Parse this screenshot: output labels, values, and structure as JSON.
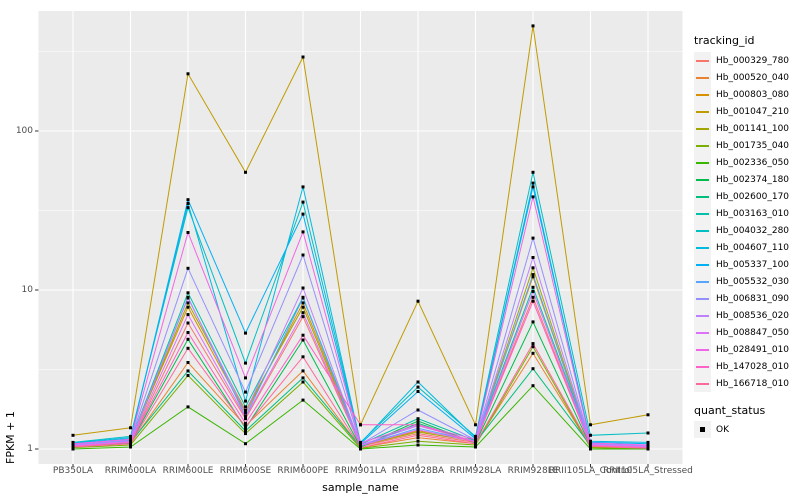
{
  "chart_data": {
    "type": "line",
    "title": "",
    "xlabel": "sample_name",
    "ylabel": "FPKM + 1",
    "y_scale": "log10",
    "y_ticks": [
      1,
      10,
      100
    ],
    "y_tick_labels": [
      "1",
      "10",
      "100"
    ],
    "y_minor_ticks": [
      3.1623,
      31.623,
      316.23
    ],
    "ylim": [
      0.79,
      570
    ],
    "grid": "white-major-minor-on-gray",
    "panel_bg": "#EBEBEB",
    "point_marker": "black-square",
    "legend_position": "right",
    "legend_title": "tracking_id",
    "quant_legend": {
      "title": "quant_status",
      "items": [
        "OK"
      ],
      "marker_icon": "black-square"
    },
    "categories": [
      "PB350LA",
      "RRIM600LA",
      "RRIM600LE",
      "RRIM600SE",
      "RRIM600PE",
      "RRIM901LA",
      "RRIM928BA",
      "RRIM928LA",
      "RRIM928LE",
      "RRII105LA_Control",
      "RRII105LA_Stressed"
    ],
    "series": [
      {
        "name": "Hb_000329_780",
        "color": "#F8766D",
        "values": [
          1.05,
          1.1,
          6.2,
          1.55,
          6.8,
          1.04,
          1.25,
          1.1,
          9.0,
          1.05,
          1.02
        ]
      },
      {
        "name": "Hb_000520_040",
        "color": "#EA8331",
        "values": [
          1.03,
          1.08,
          3.5,
          1.4,
          3.1,
          1.02,
          1.18,
          1.08,
          4.0,
          1.03,
          1.01
        ]
      },
      {
        "name": "Hb_000803_080",
        "color": "#D89000",
        "values": [
          1.08,
          1.14,
          7.8,
          1.68,
          8.3,
          1.06,
          1.3,
          1.14,
          12.1,
          1.07,
          1.04
        ]
      },
      {
        "name": "Hb_001047_210",
        "color": "#C09B00",
        "values": [
          1.22,
          1.36,
          229,
          55,
          292,
          1.42,
          8.5,
          1.42,
          458,
          1.42,
          1.64
        ]
      },
      {
        "name": "Hb_001141_100",
        "color": "#A3A500",
        "values": [
          1.06,
          1.12,
          8.3,
          1.75,
          7.8,
          1.05,
          1.28,
          1.12,
          13.8,
          1.06,
          1.03
        ]
      },
      {
        "name": "Hb_001735_040",
        "color": "#7CAE00",
        "values": [
          1.02,
          1.06,
          2.9,
          1.25,
          2.64,
          1.01,
          1.12,
          1.06,
          4.4,
          1.02,
          1.0
        ]
      },
      {
        "name": "Hb_002336_050",
        "color": "#39B600",
        "values": [
          1.0,
          1.03,
          1.84,
          1.08,
          2.03,
          1.0,
          1.06,
          1.03,
          2.5,
          1.0,
          1.0
        ]
      },
      {
        "name": "Hb_002374_180",
        "color": "#00BB4E",
        "values": [
          1.04,
          1.09,
          4.9,
          1.35,
          4.85,
          1.03,
          1.5,
          1.09,
          6.3,
          1.04,
          1.02
        ]
      },
      {
        "name": "Hb_002600_170",
        "color": "#00BF7D",
        "values": [
          1.05,
          1.1,
          3.1,
          1.3,
          2.8,
          1.03,
          1.45,
          1.1,
          3.2,
          1.05,
          1.02
        ]
      },
      {
        "name": "Hb_003163_010",
        "color": "#00C1A7",
        "values": [
          1.07,
          1.13,
          9.6,
          1.84,
          9.0,
          1.07,
          1.55,
          1.13,
          10.4,
          1.08,
          1.05
        ]
      },
      {
        "name": "Hb_004032_280",
        "color": "#00BFC4",
        "values": [
          1.1,
          1.2,
          33,
          3.47,
          35.7,
          1.1,
          2.45,
          1.2,
          55,
          1.22,
          1.26
        ]
      },
      {
        "name": "Hb_004607_110",
        "color": "#00BAE0",
        "values": [
          1.09,
          1.18,
          35,
          2.0,
          44.5,
          1.09,
          2.64,
          1.18,
          44.5,
          1.12,
          1.1
        ]
      },
      {
        "name": "Hb_005337_100",
        "color": "#00B0F6",
        "values": [
          1.08,
          1.16,
          37,
          5.36,
          30,
          1.08,
          2.3,
          1.16,
          47,
          1.1,
          1.08
        ]
      },
      {
        "name": "Hb_005532_030",
        "color": "#58A5FF",
        "values": [
          1.06,
          1.12,
          9.0,
          1.6,
          8.9,
          1.05,
          1.35,
          1.12,
          12.5,
          1.06,
          1.03
        ]
      },
      {
        "name": "Hb_006831_090",
        "color": "#9590FF",
        "values": [
          1.07,
          1.14,
          13.7,
          2.28,
          16.6,
          1.07,
          1.76,
          1.14,
          21.2,
          1.08,
          1.05
        ]
      },
      {
        "name": "Hb_008536_020",
        "color": "#BF80FF",
        "values": [
          1.06,
          1.12,
          8.9,
          1.7,
          10.3,
          1.06,
          1.4,
          1.12,
          16.0,
          1.07,
          1.04
        ]
      },
      {
        "name": "Hb_008847_050",
        "color": "#DC71FA",
        "values": [
          1.05,
          1.11,
          7.0,
          1.58,
          7.2,
          1.05,
          1.32,
          1.11,
          9.8,
          1.06,
          1.03
        ]
      },
      {
        "name": "Hb_028491_010",
        "color": "#F166E8",
        "values": [
          1.08,
          1.15,
          23,
          2.8,
          23.2,
          1.09,
          1.42,
          1.15,
          38.5,
          1.09,
          1.06
        ]
      },
      {
        "name": "Hb_147028_010",
        "color": "#FF61C7",
        "values": [
          1.04,
          1.1,
          5.4,
          1.45,
          5.2,
          1.42,
          1.42,
          1.1,
          8.5,
          1.05,
          1.02
        ]
      },
      {
        "name": "Hb_166718_010",
        "color": "#FF689E",
        "values": [
          1.03,
          1.08,
          4.3,
          1.38,
          3.8,
          1.02,
          1.22,
          1.08,
          4.6,
          1.04,
          1.01
        ]
      }
    ]
  }
}
